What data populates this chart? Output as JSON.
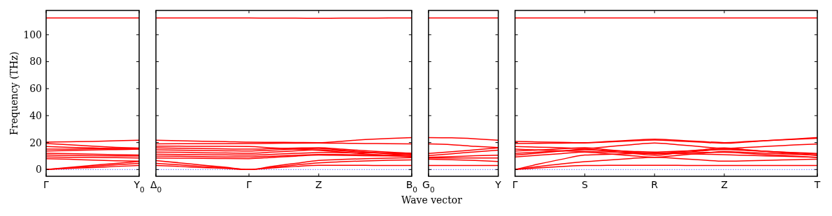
{
  "chart_data": [
    {
      "type": "line",
      "ylabel": "Frequency (THz)",
      "categories": [
        "Γ",
        null,
        null,
        null,
        "Y$_{0}$"
      ],
      "ylim": [
        -5,
        118
      ],
      "yticks": [
        0,
        20,
        40,
        60,
        80,
        100
      ],
      "grid": false,
      "marker": "none",
      "line_style": "solid",
      "ref_lines": [
        {
          "axis": "y",
          "value": 0,
          "color": "#0000ff",
          "line_style": "dotted"
        }
      ],
      "series": [
        {
          "color": "#ff0000",
          "values": [
            0,
            0.8,
            1.5,
            2.3,
            3.0
          ]
        },
        {
          "color": "#ff0000",
          "values": [
            0,
            1.6,
            3.1,
            4.6,
            6.0
          ]
        },
        {
          "color": "#ff0000",
          "values": [
            0,
            1.2,
            2.4,
            3.5,
            4.5
          ]
        },
        {
          "color": "#ff0000",
          "values": [
            8.1,
            7.6,
            7.0,
            6.5,
            6.2
          ]
        },
        {
          "color": "#ff0000",
          "values": [
            9.3,
            9.1,
            9.0,
            8.8,
            8.6
          ]
        },
        {
          "color": "#ff0000",
          "values": [
            10.7,
            10.5,
            10.3,
            10.1,
            10.0
          ]
        },
        {
          "color": "#ff0000",
          "values": [
            12.1,
            11.8,
            11.4,
            11.0,
            10.7
          ]
        },
        {
          "color": "#ff0000",
          "values": [
            13.7,
            14.1,
            14.5,
            14.8,
            15.1
          ]
        },
        {
          "color": "#ff0000",
          "values": [
            15.1,
            15.2,
            15.4,
            15.5,
            15.7
          ]
        },
        {
          "color": "#ff0000",
          "values": [
            17.1,
            16.5,
            16.0,
            15.5,
            15.3
          ]
        },
        {
          "color": "#ff0000",
          "values": [
            19.3,
            18.4,
            17.4,
            16.5,
            15.9
          ]
        },
        {
          "color": "#ff0000",
          "values": [
            20.3,
            20.6,
            20.9,
            21.3,
            21.8
          ]
        },
        {
          "color": "#ff0000",
          "values": [
            112.4,
            112.4,
            112.4,
            112.4,
            112.4
          ]
        }
      ]
    },
    {
      "type": "line",
      "xlabel": "Wave vector",
      "categories": [
        "Δ$_{0}$",
        null,
        null,
        null,
        "Γ",
        null,
        null,
        "Z",
        null,
        null,
        null,
        "B$_{0}$"
      ],
      "ylim": [
        -5,
        118
      ],
      "yticks": [
        0,
        20,
        40,
        60,
        80,
        100
      ],
      "tick_labels": "x",
      "grid": false,
      "marker": "none",
      "line_style": "solid",
      "ref_lines": [
        {
          "axis": "y",
          "value": 0,
          "color": "#0000ff",
          "line_style": "dotted"
        }
      ],
      "series": [
        {
          "color": "#ff0000",
          "values": [
            3.0,
            2.3,
            1.5,
            0.8,
            0,
            1.2,
            2.3,
            3.2,
            3.2,
            3.1,
            3.0,
            3.0
          ]
        },
        {
          "color": "#ff0000",
          "values": [
            6.6,
            5.0,
            3.3,
            1.7,
            0,
            2.4,
            4.6,
            6.8,
            7.5,
            8.1,
            8.5,
            8.8
          ]
        },
        {
          "color": "#ff0000",
          "values": [
            4.6,
            3.5,
            2.3,
            1.2,
            0,
            1.7,
            3.4,
            5.0,
            5.8,
            6.4,
            6.9,
            7.2
          ]
        },
        {
          "color": "#ff0000",
          "values": [
            8.6,
            8.5,
            8.3,
            8.2,
            8.1,
            9.0,
            9.9,
            10.7,
            10.5,
            10.3,
            10.1,
            9.9
          ]
        },
        {
          "color": "#ff0000",
          "values": [
            10.0,
            9.8,
            9.6,
            9.4,
            9.3,
            9.9,
            10.6,
            11.2,
            11.1,
            11.0,
            10.8,
            10.7
          ]
        },
        {
          "color": "#ff0000",
          "values": [
            11.4,
            11.2,
            11.0,
            10.9,
            10.7,
            11.3,
            12.0,
            12.6,
            12.5,
            12.4,
            12.3,
            12.2
          ]
        },
        {
          "color": "#ff0000",
          "values": [
            13.0,
            12.8,
            12.5,
            12.3,
            12.1,
            12.9,
            13.8,
            14.6,
            13.8,
            12.9,
            12.1,
            11.4
          ]
        },
        {
          "color": "#ff0000",
          "values": [
            14.6,
            14.4,
            14.1,
            13.9,
            13.7,
            14.4,
            15.1,
            15.7,
            14.4,
            13.0,
            11.7,
            10.5
          ]
        },
        {
          "color": "#ff0000",
          "values": [
            16.0,
            15.8,
            15.5,
            15.3,
            15.1,
            15.5,
            15.9,
            16.2,
            15.1,
            14.0,
            12.9,
            11.9
          ]
        },
        {
          "color": "#ff0000",
          "values": [
            17.4,
            17.3,
            17.2,
            17.2,
            17.1,
            16.1,
            15.2,
            14.2,
            12.9,
            11.6,
            10.4,
            9.3
          ]
        },
        {
          "color": "#ff0000",
          "values": [
            19.0,
            19.1,
            19.1,
            19.2,
            19.3,
            19.4,
            19.6,
            19.7,
            19.5,
            19.3,
            19.2,
            19.0
          ]
        },
        {
          "color": "#ff0000",
          "values": [
            21.8,
            21.4,
            21.0,
            20.7,
            20.3,
            20.2,
            20.1,
            20.0,
            21.0,
            22.2,
            23.1,
            23.7
          ]
        },
        {
          "color": "#ff0000",
          "values": [
            112.4,
            112.4,
            112.4,
            112.4,
            112.4,
            112.3,
            112.3,
            112.2,
            112.3,
            112.3,
            112.4,
            112.4
          ]
        }
      ]
    },
    {
      "type": "line",
      "categories": [
        "G$_{0}$",
        null,
        null,
        "Y"
      ],
      "ylim": [
        -5,
        118
      ],
      "yticks": [
        0,
        20,
        40,
        60,
        80,
        100
      ],
      "tick_labels": "x",
      "grid": false,
      "marker": "none",
      "line_style": "solid",
      "ref_lines": [
        {
          "axis": "y",
          "value": 0,
          "color": "#0000ff",
          "line_style": "dotted"
        }
      ],
      "series": [
        {
          "color": "#ff0000",
          "values": [
            3.0,
            3.0,
            3.0,
            3.0
          ]
        },
        {
          "color": "#ff0000",
          "values": [
            7.7,
            7.3,
            6.7,
            6.0
          ]
        },
        {
          "color": "#ff0000",
          "values": [
            8.6,
            8.6,
            8.6,
            8.6
          ]
        },
        {
          "color": "#ff0000",
          "values": [
            9.1,
            9.6,
            10.2,
            10.7
          ]
        },
        {
          "color": "#ff0000",
          "values": [
            10.4,
            11.7,
            13.1,
            14.4
          ]
        },
        {
          "color": "#ff0000",
          "values": [
            11.9,
            13.2,
            14.6,
            16.0
          ]
        },
        {
          "color": "#ff0000",
          "values": [
            19.0,
            18.4,
            17.2,
            16.3
          ]
        },
        {
          "color": "#ff0000",
          "values": [
            23.7,
            23.5,
            22.8,
            21.8
          ]
        },
        {
          "color": "#ff0000",
          "values": [
            112.4,
            112.4,
            112.4,
            112.4
          ]
        }
      ]
    },
    {
      "type": "line",
      "categories": [
        "Γ",
        null,
        null,
        "S",
        null,
        null,
        "R",
        null,
        null,
        "Z",
        null,
        null,
        null,
        "T"
      ],
      "ylim": [
        -5,
        118
      ],
      "yticks": [
        0,
        20,
        40,
        60,
        80,
        100
      ],
      "tick_labels": "x",
      "grid": false,
      "marker": "none",
      "line_style": "solid",
      "ref_lines": [
        {
          "axis": "y",
          "value": 0,
          "color": "#0000ff",
          "line_style": "dotted"
        }
      ],
      "series": [
        {
          "color": "#ff0000",
          "values": [
            0,
            1.2,
            2.2,
            3.0,
            3.1,
            3.2,
            3.2,
            3.1,
            3.0,
            3.0,
            3.0,
            3.0,
            3.0,
            3.0
          ]
        },
        {
          "color": "#ff0000",
          "values": [
            0,
            2.2,
            4.2,
            5.8,
            7.0,
            8.2,
            9.1,
            8.2,
            7.1,
            6.2,
            6.5,
            6.9,
            7.3,
            7.7
          ]
        },
        {
          "color": "#ff0000",
          "values": [
            0,
            4.0,
            7.6,
            10.7,
            11.3,
            11.8,
            12.1,
            11.8,
            11.4,
            11.0,
            10.5,
            10.0,
            9.6,
            9.1
          ]
        },
        {
          "color": "#ff0000",
          "values": [
            9.3,
            10.6,
            11.8,
            13.0,
            11.7,
            10.3,
            9.1,
            10.5,
            12.0,
            13.4,
            12.7,
            12.0,
            11.3,
            10.7
          ]
        },
        {
          "color": "#ff0000",
          "values": [
            10.7,
            12.2,
            13.7,
            15.1,
            13.6,
            12.1,
            10.6,
            12.2,
            13.8,
            15.3,
            14.3,
            13.3,
            12.4,
            11.5
          ]
        },
        {
          "color": "#ff0000",
          "values": [
            12.1,
            12.9,
            13.8,
            14.6,
            14.1,
            13.5,
            13.0,
            13.6,
            14.2,
            14.8,
            14.1,
            13.3,
            12.6,
            11.9
          ]
        },
        {
          "color": "#ff0000",
          "values": [
            13.7,
            14.5,
            15.4,
            16.2,
            14.7,
            13.1,
            11.6,
            13.1,
            14.6,
            16.0,
            14.6,
            13.2,
            11.8,
            10.4
          ]
        },
        {
          "color": "#ff0000",
          "values": [
            15.1,
            14.5,
            13.9,
            13.4,
            13.0,
            12.7,
            12.3,
            12.5,
            12.7,
            12.8,
            11.9,
            10.9,
            10.0,
            9.0
          ]
        },
        {
          "color": "#ff0000",
          "values": [
            17.1,
            16.6,
            16.2,
            15.7,
            17.0,
            18.4,
            19.7,
            18.4,
            17.0,
            15.7,
            16.5,
            17.3,
            18.2,
            19.0
          ]
        },
        {
          "color": "#ff0000",
          "values": [
            19.3,
            19.4,
            19.6,
            19.7,
            20.4,
            21.2,
            21.9,
            21.1,
            20.3,
            19.5,
            20.5,
            21.6,
            22.7,
            23.7
          ]
        },
        {
          "color": "#ff0000",
          "values": [
            20.8,
            20.5,
            20.2,
            19.9,
            20.8,
            21.7,
            22.5,
            21.7,
            20.8,
            20.0,
            20.8,
            21.6,
            22.4,
            23.2
          ]
        },
        {
          "color": "#ff0000",
          "values": [
            112.4,
            112.4,
            112.4,
            112.4,
            112.4,
            112.4,
            112.4,
            112.4,
            112.4,
            112.4,
            112.4,
            112.4,
            112.4,
            112.4
          ]
        }
      ]
    }
  ]
}
